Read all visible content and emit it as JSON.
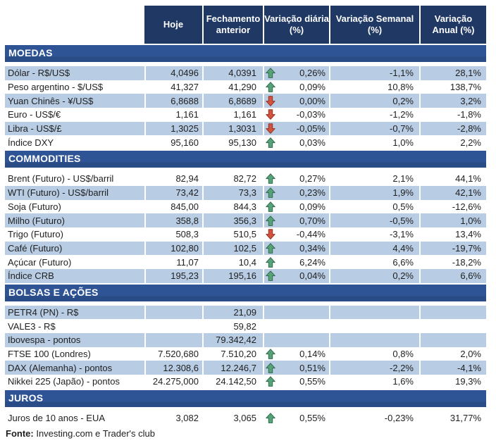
{
  "header": {
    "columns": [
      "Hoje",
      "Fechamento\nanterior",
      "Variação diária\n(%)",
      "Variação Semanal\n(%)",
      "Variação\nAnual (%)"
    ]
  },
  "sections": [
    {
      "title": "MOEDAS",
      "rows": [
        {
          "label": "Dólar - R$/US$",
          "hoje": "4,0496",
          "fechamento": "4,0391",
          "arrow": "up",
          "var_diaria": "0,26%",
          "var_semanal": "-1,1%",
          "var_anual": "28,1%"
        },
        {
          "label": "Peso argentino - $/US$",
          "hoje": "41,327",
          "fechamento": "41,290",
          "arrow": "up",
          "var_diaria": "0,09%",
          "var_semanal": "10,8%",
          "var_anual": "138,7%"
        },
        {
          "label": "Yuan Chinês - ¥/US$",
          "hoje": "6,8688",
          "fechamento": "6,8689",
          "arrow": "down",
          "var_diaria": "0,00%",
          "var_semanal": "0,2%",
          "var_anual": "3,2%"
        },
        {
          "label": "Euro - US$/€",
          "hoje": "1,161",
          "fechamento": "1,161",
          "arrow": "down",
          "var_diaria": "-0,03%",
          "var_semanal": "-1,2%",
          "var_anual": "-1,8%"
        },
        {
          "label": "Libra - US$/£",
          "hoje": "1,3025",
          "fechamento": "1,3031",
          "arrow": "down",
          "var_diaria": "-0,05%",
          "var_semanal": "-0,7%",
          "var_anual": "-2,8%"
        },
        {
          "label": "Índice DXY",
          "hoje": "95,160",
          "fechamento": "95,130",
          "arrow": "up",
          "var_diaria": "0,03%",
          "var_semanal": "1,0%",
          "var_anual": "2,2%"
        }
      ]
    },
    {
      "title": "COMMODITIES",
      "rows": [
        {
          "label": "Brent (Futuro) - US$/barril",
          "hoje": "82,94",
          "fechamento": "82,72",
          "arrow": "up",
          "var_diaria": "0,27%",
          "var_semanal": "2,1%",
          "var_anual": "44,1%"
        },
        {
          "label": "WTI (Futuro) - US$/barril",
          "hoje": "73,42",
          "fechamento": "73,3",
          "arrow": "up",
          "var_diaria": "0,23%",
          "var_semanal": "1,9%",
          "var_anual": "42,1%"
        },
        {
          "label": "Soja (Futuro)",
          "hoje": "845,00",
          "fechamento": "844,3",
          "arrow": "up",
          "var_diaria": "0,09%",
          "var_semanal": "0,5%",
          "var_anual": "-12,6%"
        },
        {
          "label": "Milho (Futuro)",
          "hoje": "358,8",
          "fechamento": "356,3",
          "arrow": "up",
          "var_diaria": "0,70%",
          "var_semanal": "-0,5%",
          "var_anual": "1,0%"
        },
        {
          "label": "Trigo (Futuro)",
          "hoje": "508,3",
          "fechamento": "510,5",
          "arrow": "down",
          "var_diaria": "-0,44%",
          "var_semanal": "-3,1%",
          "var_anual": "13,4%"
        },
        {
          "label": "Café (Futuro)",
          "hoje": "102,80",
          "fechamento": "102,5",
          "arrow": "up",
          "var_diaria": "0,34%",
          "var_semanal": "4,4%",
          "var_anual": "-19,7%"
        },
        {
          "label": "Açúcar (Futuro)",
          "hoje": "11,07",
          "fechamento": "10,4",
          "arrow": "up",
          "var_diaria": "6,24%",
          "var_semanal": "6,6%",
          "var_anual": "-18,2%"
        },
        {
          "label": "Índice CRB",
          "hoje": "195,23",
          "fechamento": "195,16",
          "arrow": "up",
          "var_diaria": "0,04%",
          "var_semanal": "0,2%",
          "var_anual": "6,6%"
        }
      ]
    },
    {
      "title": "BOLSAS E AÇÕES",
      "rows": [
        {
          "label": "PETR4 (PN) - R$",
          "hoje": "",
          "fechamento": "21,09",
          "arrow": "",
          "var_diaria": "",
          "var_semanal": "",
          "var_anual": ""
        },
        {
          "label": "VALE3 - R$",
          "hoje": "",
          "fechamento": "59,82",
          "arrow": "",
          "var_diaria": "",
          "var_semanal": "",
          "var_anual": ""
        },
        {
          "label": "Ibovespa - pontos",
          "hoje": "",
          "fechamento": "79.342,42",
          "arrow": "",
          "var_diaria": "",
          "var_semanal": "",
          "var_anual": ""
        },
        {
          "label": "FTSE 100 (Londres)",
          "hoje": "7.520,680",
          "fechamento": "7.510,20",
          "arrow": "up",
          "var_diaria": "0,14%",
          "var_semanal": "0,8%",
          "var_anual": "2,0%"
        },
        {
          "label": "DAX (Alemanha) - pontos",
          "hoje": "12.308,6",
          "fechamento": "12.246,7",
          "arrow": "up",
          "var_diaria": "0,51%",
          "var_semanal": "-2,2%",
          "var_anual": "-4,1%"
        },
        {
          "label": "Nikkei 225 (Japão) - pontos",
          "hoje": "24.275,000",
          "fechamento": "24.142,50",
          "arrow": "up",
          "var_diaria": "0,55%",
          "var_semanal": "1,6%",
          "var_anual": "19,3%"
        }
      ]
    },
    {
      "title": "JUROS",
      "rows": [
        {
          "label": "Juros de 10 anos - EUA",
          "hoje": "3,082",
          "fechamento": "3,065",
          "arrow": "up",
          "var_diaria": "0,55%",
          "var_semanal": "-0,23%",
          "var_anual": "31,77%"
        }
      ]
    }
  ],
  "footer": {
    "source_label": "Fonte:",
    "source_text": " Investing.com e Trader's club"
  },
  "colors": {
    "header_bg": "#1F3864",
    "band_bg": "#2F5496",
    "band_bg_dark": "#294B86",
    "shaded_row_bg": "#B8CCE4",
    "arrow_up_fill": "#57A377",
    "arrow_up_stroke": "#2F6B4E",
    "arrow_down_fill": "#D0543E",
    "arrow_down_stroke": "#97301F"
  }
}
